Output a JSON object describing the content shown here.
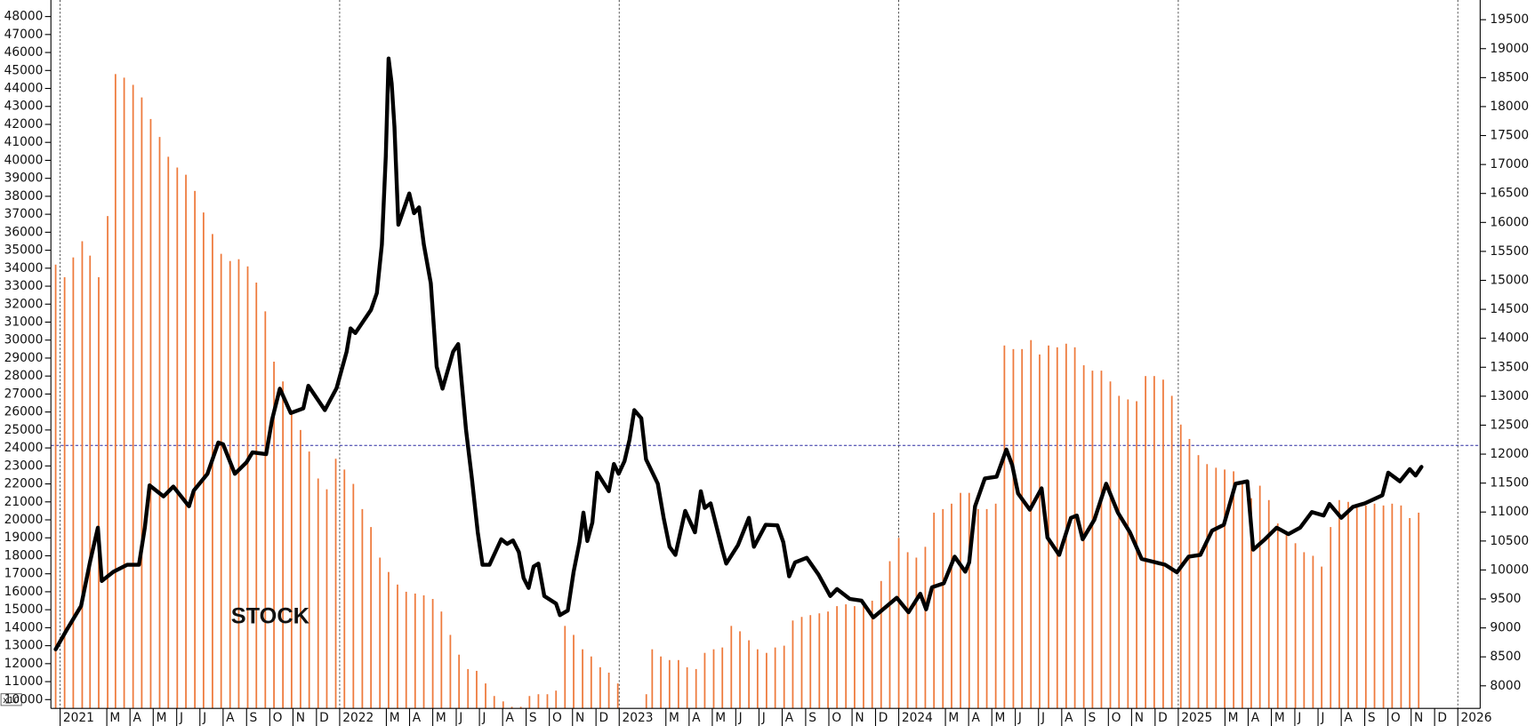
{
  "chart_data": {
    "type": "combo",
    "ylabel": "x10",
    "xlim": [
      2020.967,
      2026.08
    ],
    "ylim": [
      9510,
      48920
    ],
    "y2lim": [
      7610,
      19840
    ],
    "xticks": [
      {
        "value": 2021,
        "label": "2021"
      },
      {
        "value": 2021.167,
        "label": "M"
      },
      {
        "value": 2021.25,
        "label": "A"
      },
      {
        "value": 2021.333,
        "label": "M"
      },
      {
        "value": 2021.417,
        "label": "J"
      },
      {
        "value": 2021.5,
        "label": "J"
      },
      {
        "value": 2021.583,
        "label": "A"
      },
      {
        "value": 2021.667,
        "label": "S"
      },
      {
        "value": 2021.75,
        "label": "O"
      },
      {
        "value": 2021.833,
        "label": "N"
      },
      {
        "value": 2021.917,
        "label": "D"
      },
      {
        "value": 2022,
        "label": "2022"
      },
      {
        "value": 2022.167,
        "label": "M"
      },
      {
        "value": 2022.25,
        "label": "A"
      },
      {
        "value": 2022.333,
        "label": "M"
      },
      {
        "value": 2022.417,
        "label": "J"
      },
      {
        "value": 2022.5,
        "label": "J"
      },
      {
        "value": 2022.583,
        "label": "A"
      },
      {
        "value": 2022.667,
        "label": "S"
      },
      {
        "value": 2022.75,
        "label": "O"
      },
      {
        "value": 2022.833,
        "label": "N"
      },
      {
        "value": 2022.917,
        "label": "D"
      },
      {
        "value": 2023,
        "label": "2023"
      },
      {
        "value": 2023.167,
        "label": "M"
      },
      {
        "value": 2023.25,
        "label": "A"
      },
      {
        "value": 2023.333,
        "label": "M"
      },
      {
        "value": 2023.417,
        "label": "J"
      },
      {
        "value": 2023.5,
        "label": "J"
      },
      {
        "value": 2023.583,
        "label": "A"
      },
      {
        "value": 2023.667,
        "label": "S"
      },
      {
        "value": 2023.75,
        "label": "O"
      },
      {
        "value": 2023.833,
        "label": "N"
      },
      {
        "value": 2023.917,
        "label": "D"
      },
      {
        "value": 2024,
        "label": "2024"
      },
      {
        "value": 2024.167,
        "label": "M"
      },
      {
        "value": 2024.25,
        "label": "A"
      },
      {
        "value": 2024.333,
        "label": "M"
      },
      {
        "value": 2024.417,
        "label": "J"
      },
      {
        "value": 2024.5,
        "label": "J"
      },
      {
        "value": 2024.583,
        "label": "A"
      },
      {
        "value": 2024.667,
        "label": "S"
      },
      {
        "value": 2024.75,
        "label": "O"
      },
      {
        "value": 2024.833,
        "label": "N"
      },
      {
        "value": 2024.917,
        "label": "D"
      },
      {
        "value": 2025,
        "label": "2025"
      },
      {
        "value": 2025.167,
        "label": "M"
      },
      {
        "value": 2025.25,
        "label": "A"
      },
      {
        "value": 2025.333,
        "label": "M"
      },
      {
        "value": 2025.417,
        "label": "J"
      },
      {
        "value": 2025.5,
        "label": "J"
      },
      {
        "value": 2025.583,
        "label": "A"
      },
      {
        "value": 2025.667,
        "label": "S"
      },
      {
        "value": 2025.75,
        "label": "O"
      },
      {
        "value": 2025.833,
        "label": "N"
      },
      {
        "value": 2025.917,
        "label": "D"
      },
      {
        "value": 2026,
        "label": "2026"
      }
    ],
    "yticks": [
      10000,
      11000,
      12000,
      13000,
      14000,
      15000,
      16000,
      17000,
      18000,
      19000,
      20000,
      21000,
      22000,
      23000,
      24000,
      25000,
      26000,
      27000,
      28000,
      29000,
      30000,
      31000,
      32000,
      33000,
      34000,
      35000,
      36000,
      37000,
      38000,
      39000,
      40000,
      41000,
      42000,
      43000,
      44000,
      45000,
      46000,
      47000,
      48000
    ],
    "y2ticks": [
      8000,
      8500,
      9000,
      9500,
      10000,
      10500,
      11000,
      11500,
      12000,
      12500,
      13000,
      13500,
      14000,
      14500,
      15000,
      15500,
      16000,
      16500,
      17000,
      17500,
      18000,
      18500,
      19000,
      19500
    ],
    "hline": {
      "value": 12150,
      "axis": "y2",
      "color": "#2a2aa0"
    },
    "series": [
      {
        "name": "STOCK",
        "type": "bar",
        "color": "#ee7a3c",
        "x": [
          2020.984,
          2021.016,
          2021.047,
          2021.079,
          2021.107,
          2021.138,
          2021.17,
          2021.198,
          2021.229,
          2021.261,
          2021.292,
          2021.324,
          2021.356,
          2021.387,
          2021.419,
          2021.45,
          2021.482,
          2021.513,
          2021.545,
          2021.576,
          2021.608,
          2021.639,
          2021.671,
          2021.702,
          2021.734,
          2021.765,
          2021.797,
          2021.828,
          2021.86,
          2021.891,
          2021.923,
          2021.954,
          2021.986,
          2022.017,
          2022.049,
          2022.081,
          2022.112,
          2022.144,
          2022.175,
          2022.207,
          2022.238,
          2022.27,
          2022.301,
          2022.333,
          2022.364,
          2022.396,
          2022.427,
          2022.459,
          2022.49,
          2022.522,
          2022.553,
          2022.585,
          2022.616,
          2022.648,
          2022.679,
          2022.711,
          2022.743,
          2022.774,
          2022.806,
          2022.837,
          2022.869,
          2022.9,
          2022.932,
          2022.963,
          2022.995,
          2023.097,
          2023.118,
          2023.149,
          2023.18,
          2023.212,
          2023.243,
          2023.275,
          2023.306,
          2023.338,
          2023.369,
          2023.401,
          2023.432,
          2023.464,
          2023.495,
          2023.527,
          2023.558,
          2023.59,
          2023.621,
          2023.653,
          2023.684,
          2023.716,
          2023.747,
          2023.779,
          2023.811,
          2023.842,
          2023.874,
          2023.905,
          2023.937,
          2023.968,
          2024.0,
          2024.032,
          2024.063,
          2024.095,
          2024.126,
          2024.158,
          2024.189,
          2024.221,
          2024.252,
          2024.284,
          2024.315,
          2024.347,
          2024.378,
          2024.41,
          2024.441,
          2024.473,
          2024.504,
          2024.536,
          2024.567,
          2024.599,
          2024.63,
          2024.662,
          2024.693,
          2024.725,
          2024.757,
          2024.788,
          2024.82,
          2024.851,
          2024.883,
          2024.914,
          2024.946,
          2024.977,
          2025.009,
          2025.04,
          2025.072,
          2025.103,
          2025.135,
          2025.166,
          2025.198,
          2025.229,
          2025.261,
          2025.292,
          2025.324,
          2025.356,
          2025.387,
          2025.419,
          2025.45,
          2025.482,
          2025.513,
          2025.545,
          2025.576,
          2025.608,
          2025.639,
          2025.671,
          2025.702,
          2025.734,
          2025.765,
          2025.797,
          2025.828,
          2025.86
        ],
        "values": [
          34200,
          33500,
          34600,
          35500,
          34700,
          33500,
          36900,
          44800,
          44600,
          44200,
          43500,
          42300,
          41300,
          40200,
          39600,
          39200,
          38300,
          37100,
          35900,
          34800,
          34400,
          34500,
          34100,
          33200,
          31600,
          28800,
          27700,
          26100,
          25000,
          23800,
          22300,
          21700,
          23400,
          22800,
          22000,
          20600,
          19600,
          17900,
          17100,
          16400,
          16000,
          15900,
          15800,
          15600,
          14900,
          13600,
          12500,
          11700,
          11600,
          10900,
          10200,
          9900,
          9600,
          9600,
          10200,
          10300,
          10300,
          10500,
          14100,
          13600,
          12800,
          12400,
          11800,
          11500,
          10900,
          10300,
          12800,
          12400,
          12200,
          12200,
          11800,
          11700,
          12600,
          12800,
          12900,
          14100,
          13800,
          13300,
          12800,
          12600,
          12900,
          13000,
          14400,
          14600,
          14700,
          14800,
          14900,
          15200,
          15300,
          15200,
          15200,
          15500,
          16600,
          17700,
          19000,
          18200,
          17900,
          18500,
          20400,
          20600,
          20900,
          21500,
          21500,
          20600,
          20600,
          20900,
          29700,
          29500,
          29500,
          30000,
          29200,
          29700,
          29600,
          29800,
          29600,
          28600,
          28300,
          28300,
          27700,
          26900,
          26700,
          26600,
          28000,
          28000,
          27800,
          26900,
          25300,
          24500,
          23600,
          23100,
          22900,
          22800,
          22700,
          22000,
          21200,
          21900,
          21100,
          19800,
          19300,
          18700,
          18200,
          18000,
          17400,
          19600,
          21100,
          21000,
          20800,
          20800,
          20900,
          20800,
          20900,
          20800,
          20100,
          20400
        ]
      },
      {
        "type": "line",
        "axis": "y2",
        "color": "#000000",
        "x": [
          2020.984,
          2021.023,
          2021.075,
          2021.107,
          2021.135,
          2021.149,
          2021.191,
          2021.24,
          2021.282,
          2021.303,
          2021.32,
          2021.37,
          2021.405,
          2021.461,
          2021.478,
          2021.527,
          2021.566,
          2021.583,
          2021.625,
          2021.667,
          2021.688,
          2021.737,
          2021.758,
          2021.786,
          2021.825,
          2021.87,
          2021.888,
          2021.947,
          2021.989,
          2022.025,
          2022.039,
          2022.056,
          2022.112,
          2022.133,
          2022.151,
          2022.165,
          2022.175,
          2022.186,
          2022.196,
          2022.21,
          2022.249,
          2022.266,
          2022.284,
          2022.301,
          2022.326,
          2022.347,
          2022.368,
          2022.406,
          2022.424,
          2022.452,
          2022.473,
          2022.494,
          2022.511,
          2022.536,
          2022.578,
          2022.599,
          2022.62,
          2022.641,
          2022.658,
          2022.676,
          2022.694,
          2022.711,
          2022.732,
          2022.774,
          2022.788,
          2022.816,
          2022.837,
          2022.858,
          2022.872,
          2022.886,
          2022.904,
          2022.921,
          2022.963,
          2022.981,
          2022.998,
          2023.019,
          2023.037,
          2023.054,
          2023.079,
          2023.096,
          2023.138,
          2023.159,
          2023.18,
          2023.201,
          2023.236,
          2023.271,
          2023.292,
          2023.306,
          2023.327,
          2023.369,
          2023.383,
          2023.425,
          2023.464,
          2023.482,
          2023.524,
          2023.566,
          2023.587,
          2023.608,
          2023.629,
          2023.671,
          2023.713,
          2023.755,
          2023.779,
          2023.825,
          2023.867,
          2023.909,
          2023.951,
          2023.993,
          2024.035,
          2024.077,
          2024.098,
          2024.119,
          2024.161,
          2024.2,
          2024.238,
          2024.252,
          2024.273,
          2024.308,
          2024.35,
          2024.385,
          2024.406,
          2024.427,
          2024.469,
          2024.511,
          2024.532,
          2024.574,
          2024.616,
          2024.637,
          2024.658,
          2024.7,
          2024.742,
          2024.784,
          2024.827,
          2024.869,
          2024.911,
          2024.953,
          2024.995,
          2025.037,
          2025.079,
          2025.121,
          2025.163,
          2025.205,
          2025.247,
          2025.268,
          2025.31,
          2025.352,
          2025.394,
          2025.436,
          2025.478,
          2025.52,
          2025.541,
          2025.583,
          2025.625,
          2025.667,
          2025.73,
          2025.751,
          2025.793,
          2025.828,
          2025.849,
          2025.87
        ],
        "values": [
          8630,
          8960,
          9380,
          10140,
          10730,
          9810,
          9970,
          10090,
          10090,
          10730,
          11460,
          11270,
          11440,
          11100,
          11370,
          11660,
          12200,
          12170,
          11660,
          11860,
          12030,
          12000,
          12590,
          13130,
          12710,
          12790,
          13180,
          12760,
          13140,
          13770,
          14170,
          14090,
          14490,
          14780,
          15620,
          17140,
          18830,
          18400,
          17650,
          15960,
          16500,
          16160,
          16260,
          15620,
          14950,
          13510,
          13130,
          13770,
          13900,
          12420,
          11580,
          10650,
          10090,
          10090,
          10530,
          10450,
          10510,
          10310,
          9860,
          9690,
          10060,
          10110,
          9550,
          9420,
          9220,
          9300,
          9970,
          10480,
          10990,
          10500,
          10820,
          11680,
          11360,
          11830,
          11660,
          11880,
          12250,
          12760,
          12620,
          11910,
          11490,
          10900,
          10400,
          10260,
          11020,
          10650,
          11360,
          11070,
          11150,
          10350,
          10110,
          10430,
          10900,
          10400,
          10780,
          10770,
          10480,
          9890,
          10130,
          10210,
          9920,
          9550,
          9670,
          9500,
          9470,
          9180,
          9350,
          9520,
          9270,
          9590,
          9320,
          9700,
          9770,
          10230,
          9970,
          10130,
          11100,
          11580,
          11610,
          12080,
          11810,
          11320,
          11040,
          11410,
          10560,
          10260,
          10900,
          10940,
          10530,
          10870,
          11490,
          10990,
          10650,
          10190,
          10140,
          10090,
          9960,
          10230,
          10260,
          10680,
          10780,
          11490,
          11530,
          10350,
          10530,
          10730,
          10620,
          10730,
          11000,
          10940,
          11140,
          10900,
          11090,
          11150,
          11290,
          11680,
          11530,
          11740,
          11630,
          11780
        ]
      }
    ]
  }
}
